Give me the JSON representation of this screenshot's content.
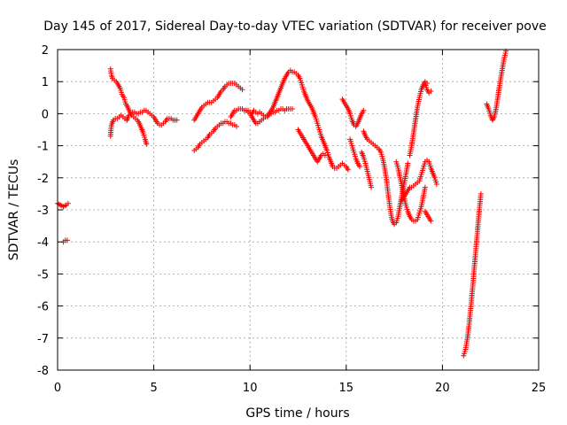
{
  "chart_data": {
    "type": "scatter",
    "title": "Day 145 of 2017, Sidereal Day-to-day VTEC variation (SDTVAR) for receiver pove",
    "xlabel": "GPS time / hours",
    "ylabel": "SDTVAR / TECUs",
    "xlim": [
      0,
      25
    ],
    "ylim": [
      -8,
      2
    ],
    "xticks": [
      "0",
      "5",
      "10",
      "15",
      "20",
      "25"
    ],
    "yticks": [
      "2",
      "1",
      "0",
      "-1",
      "-2",
      "-3",
      "-4",
      "-5",
      "-6",
      "-7",
      "-8"
    ],
    "grid": true,
    "marker": "plus",
    "series_color": "#ff0000",
    "segments": [
      [
        [
          0.0,
          -2.8
        ],
        [
          0.15,
          -2.85
        ],
        [
          0.3,
          -2.9
        ],
        [
          0.45,
          -2.85
        ],
        [
          0.55,
          -2.8
        ]
      ],
      [
        [
          0.3,
          -4.0
        ],
        [
          0.4,
          -3.95
        ],
        [
          0.5,
          -3.95
        ]
      ],
      [
        [
          2.75,
          1.4
        ],
        [
          2.8,
          1.2
        ],
        [
          2.85,
          1.1
        ],
        [
          2.95,
          1.05
        ],
        [
          3.05,
          1.0
        ],
        [
          3.15,
          0.9
        ],
        [
          3.25,
          0.8
        ],
        [
          3.35,
          0.6
        ],
        [
          3.45,
          0.5
        ],
        [
          3.55,
          0.3
        ],
        [
          3.65,
          0.2
        ],
        [
          3.75,
          0.05
        ],
        [
          3.85,
          -0.05
        ],
        [
          3.95,
          -0.1
        ],
        [
          4.05,
          -0.15
        ],
        [
          4.15,
          -0.2
        ],
        [
          4.25,
          -0.3
        ],
        [
          4.35,
          -0.45
        ],
        [
          4.45,
          -0.6
        ],
        [
          4.55,
          -0.8
        ],
        [
          4.62,
          -0.95
        ]
      ],
      [
        [
          2.75,
          -0.7
        ],
        [
          2.8,
          -0.35
        ],
        [
          2.9,
          -0.2
        ],
        [
          3.0,
          -0.15
        ],
        [
          3.1,
          -0.15
        ],
        [
          3.2,
          -0.1
        ],
        [
          3.3,
          -0.05
        ],
        [
          3.4,
          -0.1
        ],
        [
          3.5,
          -0.15
        ],
        [
          3.6,
          -0.2
        ]
      ],
      [
        [
          3.6,
          -0.2
        ],
        [
          3.7,
          -0.05
        ],
        [
          3.8,
          0.0
        ],
        [
          3.9,
          0.05
        ],
        [
          4.0,
          0.05
        ],
        [
          4.1,
          0.0
        ],
        [
          4.2,
          0.0
        ],
        [
          4.3,
          0.05
        ],
        [
          4.4,
          0.05
        ],
        [
          4.5,
          0.1
        ],
        [
          4.6,
          0.1
        ],
        [
          4.7,
          0.05
        ],
        [
          4.8,
          0.0
        ],
        [
          4.9,
          -0.05
        ],
        [
          5.0,
          -0.1
        ],
        [
          5.1,
          -0.2
        ],
        [
          5.2,
          -0.3
        ],
        [
          5.3,
          -0.35
        ],
        [
          5.4,
          -0.35
        ],
        [
          5.5,
          -0.3
        ],
        [
          5.6,
          -0.25
        ],
        [
          5.7,
          -0.15
        ],
        [
          5.8,
          -0.15
        ],
        [
          5.9,
          -0.15
        ],
        [
          6.0,
          -0.2
        ],
        [
          6.1,
          -0.2
        ],
        [
          6.2,
          -0.2
        ]
      ],
      [
        [
          7.1,
          -0.2
        ],
        [
          7.2,
          -0.1
        ],
        [
          7.3,
          0.0
        ],
        [
          7.4,
          0.1
        ],
        [
          7.5,
          0.2
        ],
        [
          7.6,
          0.25
        ],
        [
          7.7,
          0.3
        ],
        [
          7.8,
          0.35
        ],
        [
          7.9,
          0.35
        ],
        [
          8.0,
          0.35
        ],
        [
          8.1,
          0.4
        ],
        [
          8.2,
          0.45
        ],
        [
          8.3,
          0.5
        ],
        [
          8.4,
          0.6
        ],
        [
          8.5,
          0.7
        ],
        [
          8.6,
          0.75
        ],
        [
          8.7,
          0.85
        ],
        [
          8.8,
          0.9
        ],
        [
          8.9,
          0.95
        ],
        [
          9.0,
          0.95
        ],
        [
          9.1,
          0.95
        ],
        [
          9.2,
          0.95
        ],
        [
          9.3,
          0.9
        ],
        [
          9.4,
          0.85
        ],
        [
          9.5,
          0.8
        ],
        [
          9.6,
          0.75
        ]
      ],
      [
        [
          7.1,
          -1.15
        ],
        [
          7.2,
          -1.1
        ],
        [
          7.3,
          -1.05
        ],
        [
          7.4,
          -0.95
        ],
        [
          7.5,
          -0.9
        ],
        [
          7.6,
          -0.85
        ],
        [
          7.7,
          -0.8
        ],
        [
          7.8,
          -0.75
        ],
        [
          7.9,
          -0.65
        ],
        [
          8.0,
          -0.6
        ],
        [
          8.1,
          -0.55
        ],
        [
          8.2,
          -0.45
        ],
        [
          8.3,
          -0.4
        ],
        [
          8.4,
          -0.35
        ],
        [
          8.5,
          -0.3
        ],
        [
          8.6,
          -0.3
        ],
        [
          8.7,
          -0.25
        ],
        [
          8.8,
          -0.25
        ],
        [
          8.9,
          -0.3
        ],
        [
          9.0,
          -0.3
        ],
        [
          9.1,
          -0.35
        ],
        [
          9.2,
          -0.35
        ],
        [
          9.3,
          -0.4
        ]
      ],
      [
        [
          9.0,
          -0.1
        ],
        [
          9.1,
          0.0
        ],
        [
          9.2,
          0.1
        ],
        [
          9.3,
          0.1
        ],
        [
          9.4,
          0.15
        ],
        [
          9.5,
          0.15
        ],
        [
          9.6,
          0.15
        ],
        [
          9.7,
          0.1
        ],
        [
          9.8,
          0.1
        ],
        [
          9.9,
          0.05
        ],
        [
          10.0,
          0.0
        ],
        [
          10.1,
          -0.1
        ],
        [
          10.2,
          -0.2
        ],
        [
          10.3,
          -0.3
        ],
        [
          10.4,
          -0.3
        ],
        [
          10.5,
          -0.25
        ],
        [
          10.6,
          -0.2
        ],
        [
          10.7,
          -0.15
        ],
        [
          10.8,
          -0.1
        ],
        [
          10.9,
          -0.05
        ],
        [
          11.0,
          0.0
        ],
        [
          11.1,
          0.0
        ],
        [
          11.2,
          0.05
        ],
        [
          11.3,
          0.05
        ],
        [
          11.4,
          0.1
        ],
        [
          11.5,
          0.1
        ],
        [
          11.6,
          0.15
        ],
        [
          11.7,
          0.15
        ],
        [
          11.8,
          0.1
        ],
        [
          11.9,
          0.15
        ],
        [
          12.0,
          0.15
        ],
        [
          12.1,
          0.15
        ],
        [
          12.2,
          0.15
        ]
      ],
      [
        [
          9.8,
          0.1
        ],
        [
          9.9,
          0.1
        ],
        [
          10.0,
          0.05
        ],
        [
          10.1,
          0.0
        ],
        [
          10.2,
          0.1
        ],
        [
          10.3,
          0.05
        ],
        [
          10.4,
          0.0
        ],
        [
          10.5,
          0.05
        ],
        [
          10.6,
          0.0
        ],
        [
          10.7,
          -0.05
        ],
        [
          10.8,
          -0.1
        ],
        [
          10.9,
          -0.1
        ],
        [
          11.0,
          0.0
        ],
        [
          11.1,
          0.1
        ],
        [
          11.2,
          0.2
        ],
        [
          11.3,
          0.35
        ],
        [
          11.4,
          0.5
        ],
        [
          11.5,
          0.65
        ],
        [
          11.6,
          0.8
        ],
        [
          11.7,
          0.95
        ],
        [
          11.8,
          1.1
        ],
        [
          11.9,
          1.2
        ],
        [
          12.0,
          1.3
        ],
        [
          12.1,
          1.35
        ],
        [
          12.2,
          1.3
        ],
        [
          12.3,
          1.3
        ],
        [
          12.4,
          1.25
        ],
        [
          12.5,
          1.2
        ],
        [
          12.6,
          1.1
        ],
        [
          12.7,
          0.9
        ],
        [
          12.8,
          0.7
        ],
        [
          12.9,
          0.55
        ],
        [
          13.0,
          0.4
        ],
        [
          13.1,
          0.3
        ],
        [
          13.2,
          0.2
        ],
        [
          13.3,
          0.05
        ],
        [
          13.4,
          -0.1
        ],
        [
          13.5,
          -0.3
        ],
        [
          13.6,
          -0.5
        ],
        [
          13.7,
          -0.7
        ],
        [
          13.8,
          -0.85
        ],
        [
          13.9,
          -1.0
        ],
        [
          14.0,
          -1.15
        ],
        [
          14.1,
          -1.35
        ],
        [
          14.2,
          -1.5
        ],
        [
          14.3,
          -1.65
        ],
        [
          14.4,
          -1.7
        ],
        [
          14.5,
          -1.7
        ],
        [
          14.6,
          -1.65
        ],
        [
          14.7,
          -1.6
        ],
        [
          14.8,
          -1.55
        ],
        [
          14.9,
          -1.6
        ],
        [
          15.0,
          -1.65
        ],
        [
          15.1,
          -1.75
        ]
      ],
      [
        [
          12.5,
          -0.5
        ],
        [
          12.6,
          -0.6
        ],
        [
          12.7,
          -0.7
        ],
        [
          12.8,
          -0.8
        ],
        [
          12.9,
          -0.9
        ],
        [
          13.0,
          -1.0
        ],
        [
          13.1,
          -1.1
        ],
        [
          13.2,
          -1.2
        ],
        [
          13.3,
          -1.3
        ],
        [
          13.4,
          -1.4
        ],
        [
          13.5,
          -1.5
        ],
        [
          13.6,
          -1.4
        ],
        [
          13.7,
          -1.3
        ],
        [
          13.8,
          -1.25
        ],
        [
          13.9,
          -1.3
        ]
      ],
      [
        [
          14.8,
          0.45
        ],
        [
          14.9,
          0.35
        ],
        [
          15.0,
          0.25
        ],
        [
          15.1,
          0.15
        ],
        [
          15.2,
          0.0
        ],
        [
          15.3,
          -0.2
        ],
        [
          15.4,
          -0.35
        ],
        [
          15.5,
          -0.4
        ],
        [
          15.6,
          -0.3
        ],
        [
          15.7,
          -0.15
        ],
        [
          15.8,
          0.0
        ],
        [
          15.9,
          0.1
        ]
      ],
      [
        [
          15.2,
          -0.8
        ],
        [
          15.3,
          -1.0
        ],
        [
          15.4,
          -1.2
        ],
        [
          15.5,
          -1.4
        ],
        [
          15.6,
          -1.55
        ],
        [
          15.7,
          -1.65
        ]
      ],
      [
        [
          15.8,
          -1.2
        ],
        [
          15.9,
          -1.35
        ],
        [
          16.0,
          -1.55
        ],
        [
          16.1,
          -1.8
        ],
        [
          16.2,
          -2.05
        ],
        [
          16.3,
          -2.3
        ]
      ],
      [
        [
          15.9,
          -0.55
        ],
        [
          16.0,
          -0.7
        ],
        [
          16.1,
          -0.8
        ],
        [
          16.2,
          -0.85
        ],
        [
          16.3,
          -0.9
        ],
        [
          16.4,
          -0.95
        ],
        [
          16.5,
          -1.0
        ],
        [
          16.6,
          -1.05
        ],
        [
          16.7,
          -1.1
        ],
        [
          16.8,
          -1.2
        ],
        [
          16.9,
          -1.4
        ],
        [
          17.0,
          -1.7
        ],
        [
          17.1,
          -2.1
        ],
        [
          17.2,
          -2.6
        ],
        [
          17.3,
          -3.05
        ],
        [
          17.4,
          -3.35
        ],
        [
          17.5,
          -3.45
        ],
        [
          17.6,
          -3.4
        ],
        [
          17.7,
          -3.2
        ],
        [
          17.8,
          -2.85
        ],
        [
          17.9,
          -2.5
        ],
        [
          18.0,
          -2.2
        ],
        [
          18.1,
          -1.9
        ],
        [
          18.2,
          -1.55
        ]
      ],
      [
        [
          17.6,
          -1.5
        ],
        [
          17.7,
          -1.7
        ],
        [
          17.8,
          -2.0
        ],
        [
          17.9,
          -2.3
        ],
        [
          18.0,
          -2.6
        ],
        [
          18.1,
          -2.85
        ],
        [
          18.2,
          -3.05
        ],
        [
          18.3,
          -3.2
        ],
        [
          18.4,
          -3.3
        ],
        [
          18.5,
          -3.35
        ],
        [
          18.6,
          -3.35
        ],
        [
          18.7,
          -3.3
        ],
        [
          18.8,
          -3.1
        ],
        [
          18.9,
          -2.9
        ],
        [
          19.0,
          -2.6
        ],
        [
          19.1,
          -2.3
        ]
      ],
      [
        [
          18.3,
          -1.3
        ],
        [
          18.4,
          -1.0
        ],
        [
          18.5,
          -0.6
        ],
        [
          18.6,
          -0.2
        ],
        [
          18.7,
          0.2
        ],
        [
          18.8,
          0.5
        ],
        [
          18.9,
          0.75
        ],
        [
          19.0,
          0.9
        ],
        [
          19.1,
          1.0
        ],
        [
          19.2,
          0.95
        ]
      ],
      [
        [
          19.1,
          0.95
        ],
        [
          19.2,
          0.75
        ],
        [
          19.3,
          0.65
        ],
        [
          19.4,
          0.7
        ]
      ],
      [
        [
          17.9,
          -2.7
        ],
        [
          18.0,
          -2.6
        ],
        [
          18.1,
          -2.5
        ],
        [
          18.2,
          -2.4
        ],
        [
          18.3,
          -2.3
        ],
        [
          18.4,
          -2.3
        ],
        [
          18.5,
          -2.25
        ],
        [
          18.6,
          -2.2
        ],
        [
          18.7,
          -2.15
        ],
        [
          18.8,
          -2.1
        ],
        [
          18.9,
          -1.9
        ],
        [
          19.0,
          -1.7
        ],
        [
          19.1,
          -1.5
        ],
        [
          19.2,
          -1.45
        ],
        [
          19.3,
          -1.5
        ],
        [
          19.4,
          -1.7
        ],
        [
          19.5,
          -1.85
        ],
        [
          19.6,
          -2.0
        ],
        [
          19.7,
          -2.2
        ]
      ],
      [
        [
          19.1,
          -3.05
        ],
        [
          19.2,
          -3.15
        ],
        [
          19.3,
          -3.25
        ],
        [
          19.4,
          -3.35
        ]
      ],
      [
        [
          21.1,
          -7.55
        ],
        [
          21.2,
          -7.35
        ],
        [
          21.3,
          -7.0
        ],
        [
          21.4,
          -6.5
        ],
        [
          21.5,
          -5.9
        ],
        [
          21.6,
          -5.2
        ],
        [
          21.7,
          -4.5
        ],
        [
          21.8,
          -3.8
        ],
        [
          21.9,
          -3.1
        ],
        [
          22.0,
          -2.5
        ]
      ],
      [
        [
          22.3,
          0.3
        ],
        [
          22.4,
          0.15
        ],
        [
          22.5,
          -0.05
        ],
        [
          22.6,
          -0.2
        ],
        [
          22.7,
          -0.1
        ],
        [
          22.8,
          0.2
        ],
        [
          22.9,
          0.6
        ],
        [
          23.0,
          1.0
        ],
        [
          23.1,
          1.35
        ],
        [
          23.2,
          1.7
        ],
        [
          23.3,
          1.95
        ]
      ]
    ]
  }
}
